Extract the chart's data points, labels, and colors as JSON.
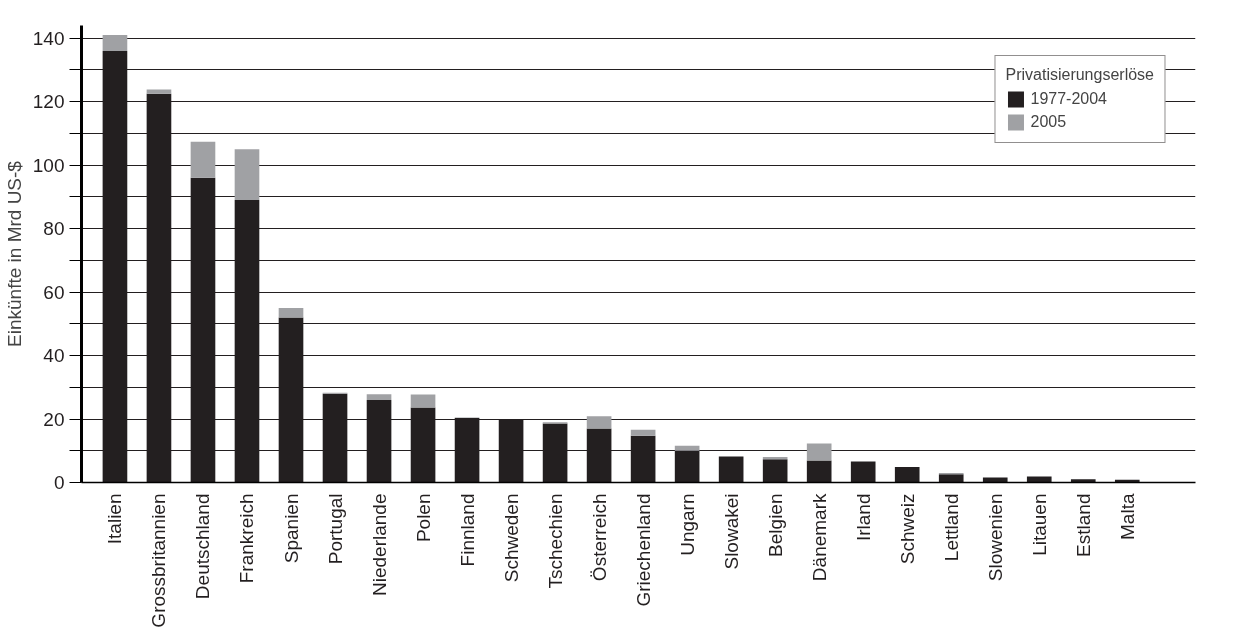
{
  "chart_data": {
    "type": "bar",
    "stacked": true,
    "ylabel": "Einkünfte in Mrd US-$",
    "legend_title": "Privatisierungserlöse",
    "categories": [
      "Italien",
      "Grossbritannien",
      "Deutschland",
      "Frankreich",
      "Spanien",
      "Portugal",
      "Niederlande",
      "Polen",
      "Finnland",
      "Schweden",
      "Tschechien",
      "Österreich",
      "Griechenland",
      "Ungarn",
      "Slowakei",
      "Belgien",
      "Dänemark",
      "Irland",
      "Schweiz",
      "Lettland",
      "Slowenien",
      "Litauen",
      "Estland",
      "Malta"
    ],
    "series": [
      {
        "name": "1977-2004",
        "color": "#231f20",
        "values": [
          136,
          122.5,
          96,
          89,
          52,
          28,
          26,
          23.6,
          20.3,
          20,
          18.6,
          17,
          14.7,
          10,
          8.2,
          7.3,
          6.9,
          6.6,
          4.9,
          2.6,
          1.6,
          1.9,
          1.0,
          0.9
        ]
      },
      {
        "name": "2005",
        "color": "#a0a1a4",
        "values": [
          5,
          1.3,
          11.4,
          16,
          3,
          0.3,
          1.8,
          4.1,
          0.2,
          0,
          0.4,
          3.9,
          1.9,
          1.6,
          null,
          0.7,
          5.4,
          0,
          0,
          0.4,
          null,
          0,
          0,
          null
        ]
      }
    ],
    "ylim": [
      0,
      144
    ],
    "yticks": [
      0,
      {
        "value": 10,
        "label": null
      },
      20,
      {
        "value": 30,
        "label": null
      },
      40,
      {
        "value": 50,
        "label": null
      },
      60,
      {
        "value": 70,
        "label": null
      },
      80,
      {
        "value": 90,
        "label": null
      },
      100,
      {
        "value": 110,
        "label": null
      },
      120,
      {
        "value": 130,
        "label": null
      },
      140
    ],
    "grid": "y",
    "legend": "top right"
  }
}
